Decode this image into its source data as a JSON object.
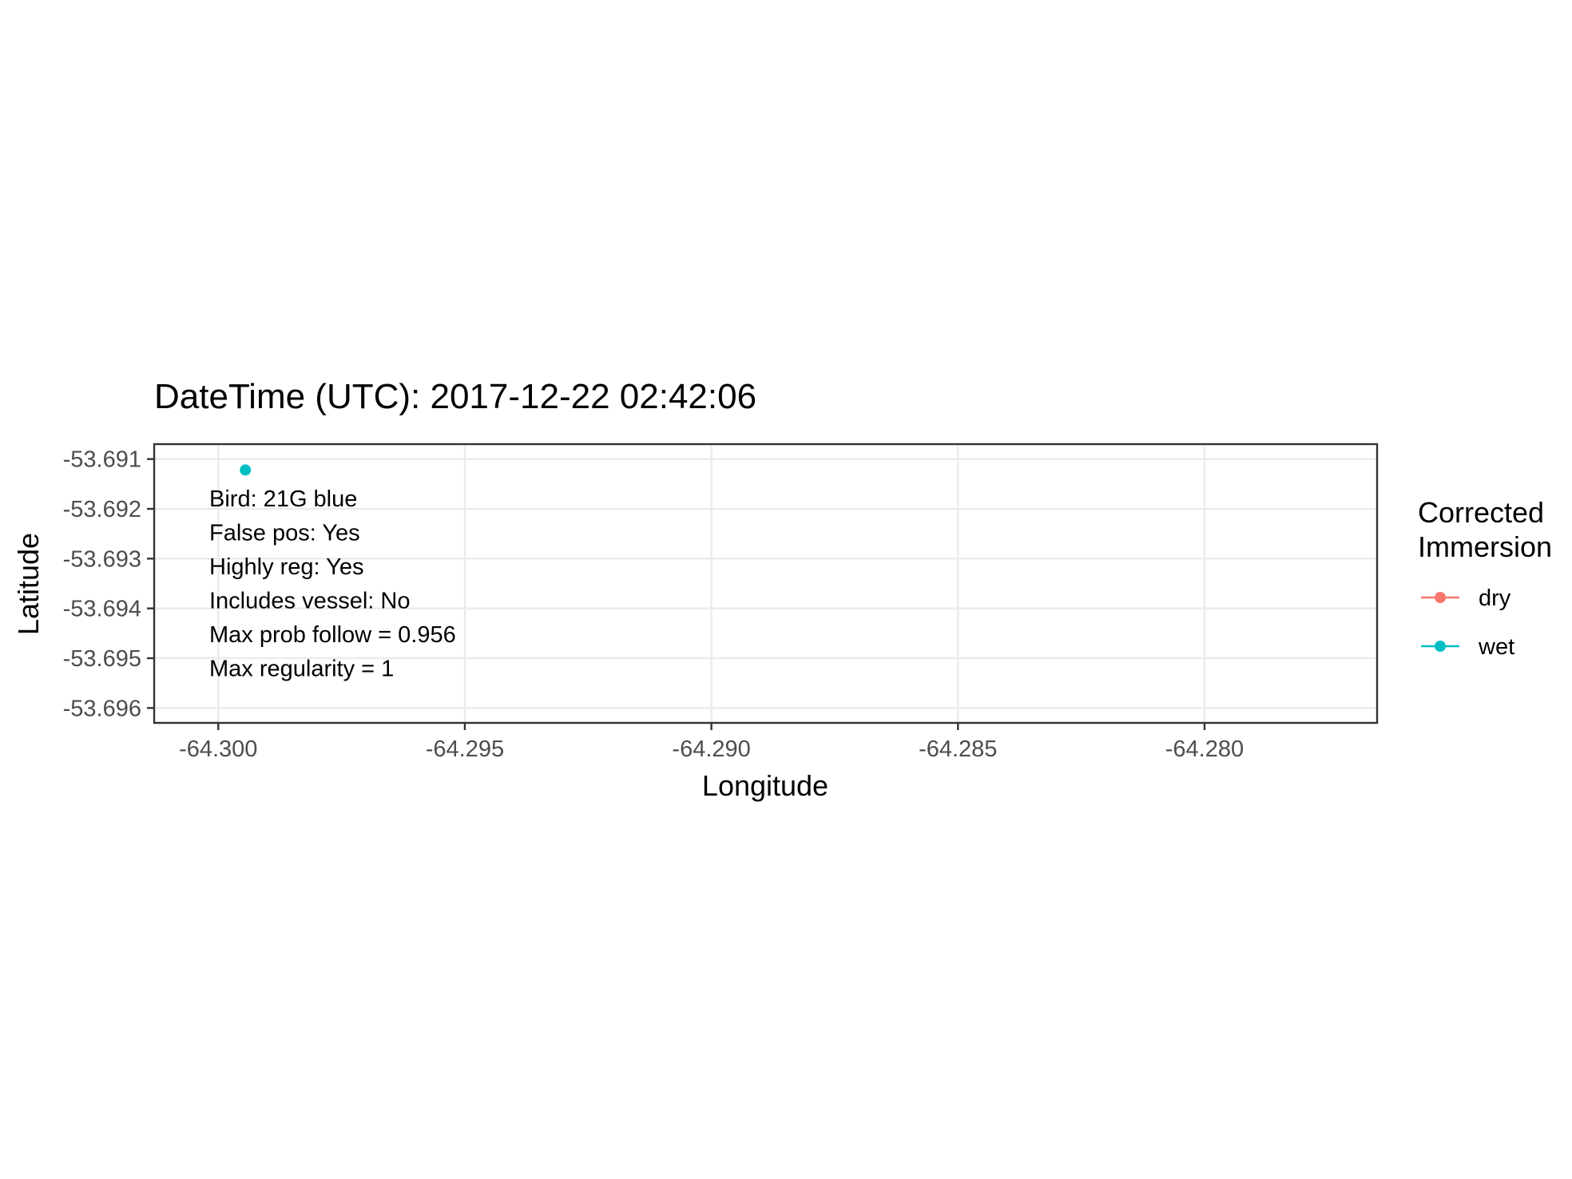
{
  "chart_data": {
    "type": "scatter",
    "title": "DateTime (UTC): 2017-12-22 02:42:06",
    "xlabel": "Longitude",
    "ylabel": "Latitude",
    "xlim": [
      -64.3013,
      -64.2765
    ],
    "ylim": [
      -53.6963,
      -53.6907
    ],
    "x_ticks": [
      -64.3,
      -64.295,
      -64.29,
      -64.285,
      -64.28
    ],
    "x_tick_labels": [
      "-64.300",
      "-64.295",
      "-64.290",
      "-64.285",
      "-64.280"
    ],
    "y_ticks": [
      -53.691,
      -53.692,
      -53.693,
      -53.694,
      -53.695,
      -53.696
    ],
    "y_tick_labels": [
      "-53.691",
      "-53.692",
      "-53.693",
      "-53.694",
      "-53.695",
      "-53.696"
    ],
    "grid": true,
    "legend": {
      "title_lines": [
        "Corrected",
        "Immersion"
      ],
      "position": "right",
      "entries": [
        {
          "label": "dry",
          "color": "#F8766D"
        },
        {
          "label": "wet",
          "color": "#00BFC4"
        }
      ]
    },
    "points": [
      {
        "x": -64.29945,
        "y": -53.69122,
        "series": "wet"
      }
    ],
    "annotations": [
      "Bird: 21G blue",
      "False pos: Yes",
      "Highly reg: Yes",
      "Includes vessel: No",
      "Max prob follow = 0.956",
      "Max regularity = 1"
    ]
  }
}
